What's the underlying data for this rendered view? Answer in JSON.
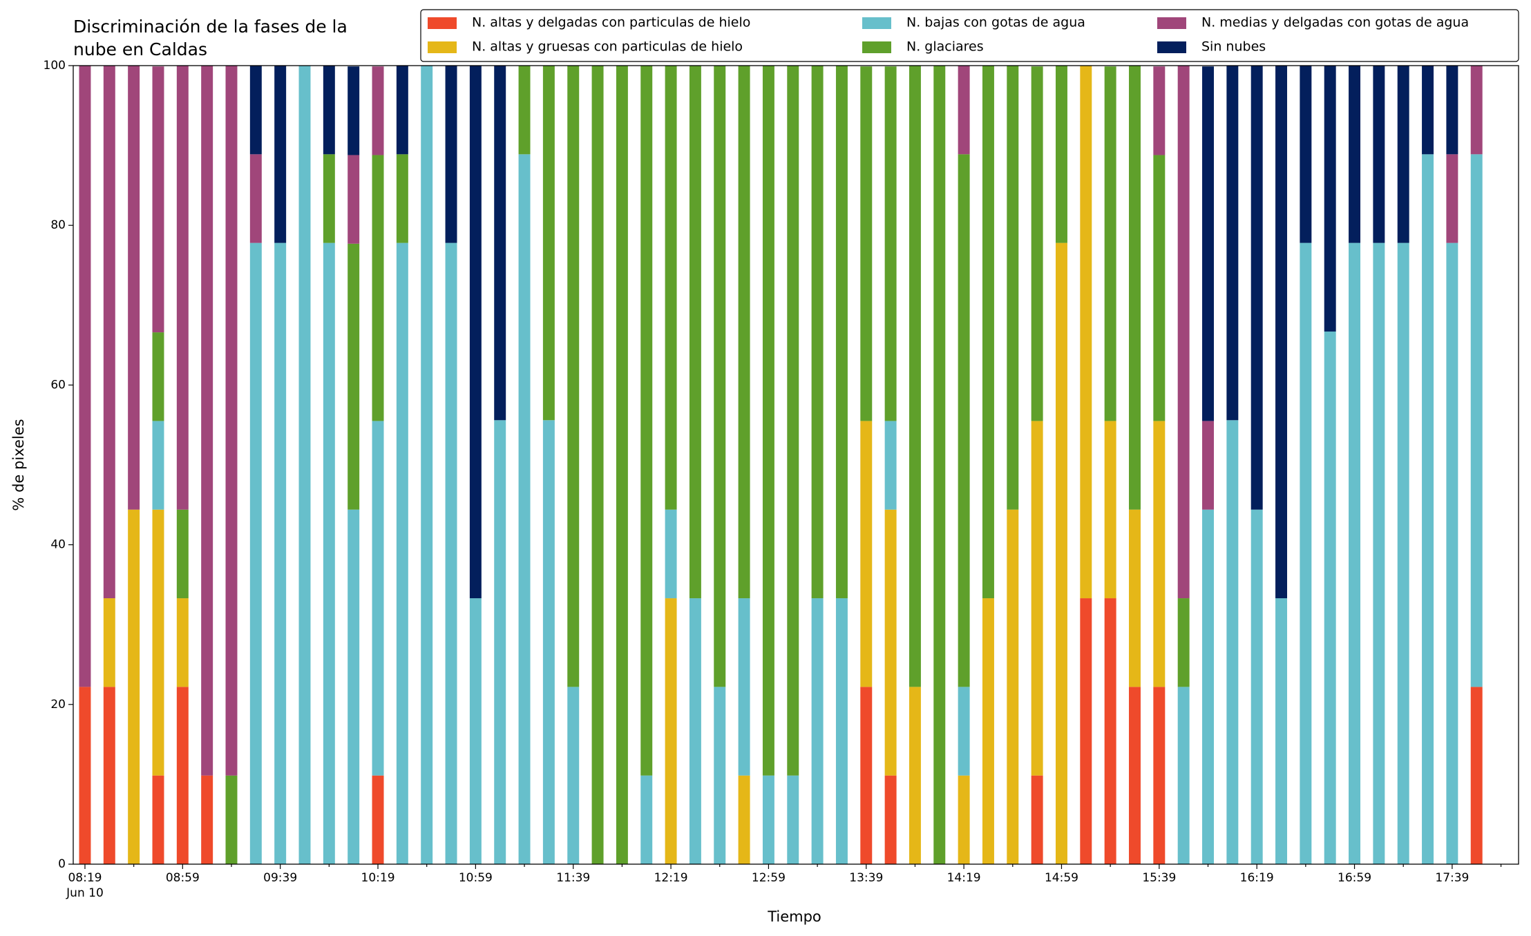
{
  "chart_data": {
    "type": "stacked_bar",
    "title": "Discriminación de la fases de la\nnube en Caldas",
    "x_label": "Tiempo",
    "y_label": "% de pixeles",
    "categories": [
      "08:19\nJun 10",
      null,
      null,
      null,
      "08:59",
      null,
      null,
      null,
      "09:39",
      null,
      null,
      null,
      "10:19",
      null,
      null,
      null,
      "10:59",
      null,
      null,
      null,
      "11:39",
      null,
      null,
      null,
      "12:19",
      null,
      null,
      null,
      "12:59",
      null,
      null,
      null,
      "13:39",
      null,
      null,
      null,
      "14:19",
      null,
      null,
      null,
      "14:59",
      null,
      null,
      null,
      "15:39",
      null,
      null,
      null,
      "16:19",
      null,
      null,
      null,
      "16:59",
      null,
      null,
      null,
      "17:39",
      null
    ],
    "series": [
      {
        "name": "N. altas y delgadas con particulas de hielo",
        "color": "#ef4a2b",
        "values": [
          22.2,
          22.2,
          0,
          11.1,
          22.2,
          11.1,
          0,
          0,
          0,
          0,
          0,
          0,
          11.1,
          0,
          0,
          0,
          0,
          0,
          0,
          0,
          0,
          0,
          0,
          0,
          0,
          0,
          0,
          0,
          0,
          0,
          0,
          0,
          22.2,
          11.1,
          0,
          0,
          0,
          0,
          0,
          11.1,
          0,
          33.3,
          33.3,
          22.2,
          22.2,
          0,
          0,
          0,
          0,
          0,
          0,
          0,
          0,
          0,
          0,
          0,
          0,
          22.2
        ]
      },
      {
        "name": "N. altas y gruesas con particulas de hielo",
        "color": "#e5b718",
        "values": [
          0,
          11.1,
          44.4,
          33.3,
          11.1,
          0,
          0,
          0,
          0,
          0,
          0,
          0,
          0,
          0,
          0,
          0,
          0,
          0,
          0,
          0,
          0,
          0,
          0,
          0,
          33.3,
          0,
          0,
          11.1,
          0,
          0,
          0,
          0,
          33.3,
          33.3,
          22.2,
          0,
          11.1,
          33.3,
          44.4,
          44.4,
          77.8,
          66.7,
          22.2,
          22.2,
          33.3,
          0,
          0,
          0,
          0,
          0,
          0,
          0,
          0,
          0,
          0,
          0,
          0,
          0
        ]
      },
      {
        "name": "N. bajas con gotas de agua",
        "color": "#67bfcb",
        "values": [
          0,
          0,
          0,
          11.1,
          0,
          0,
          0,
          77.8,
          77.8,
          100,
          77.8,
          44.4,
          44.4,
          77.8,
          100,
          77.8,
          33.3,
          55.6,
          88.9,
          55.6,
          22.2,
          0,
          0,
          11.1,
          11.1,
          33.3,
          22.2,
          22.2,
          11.1,
          11.1,
          33.3,
          33.3,
          0,
          11.1,
          0,
          0,
          11.1,
          0,
          0,
          0,
          0,
          0,
          0,
          0,
          0,
          22.2,
          44.4,
          55.6,
          44.4,
          33.3,
          77.8,
          66.7,
          77.8,
          77.8,
          77.8,
          88.9,
          77.8,
          66.7
        ]
      },
      {
        "name": "N. glaciares",
        "color": "#5fa02b",
        "values": [
          0,
          0,
          0,
          11.1,
          11.1,
          0,
          11.1,
          0,
          0,
          0,
          11.1,
          33.3,
          33.3,
          11.1,
          0,
          0,
          0,
          0,
          11.1,
          44.4,
          77.8,
          100,
          100,
          88.9,
          55.6,
          66.7,
          77.8,
          66.7,
          88.9,
          88.9,
          66.7,
          66.7,
          44.4,
          44.4,
          77.8,
          100,
          66.7,
          66.7,
          55.6,
          44.4,
          22.2,
          0,
          44.4,
          55.6,
          33.3,
          11.1,
          0,
          0,
          0,
          0,
          0,
          0,
          0,
          0,
          0,
          0,
          0,
          0
        ]
      },
      {
        "name": "N. medias y delgadas con gotas de agua",
        "color": "#a0467a",
        "values": [
          77.8,
          66.7,
          55.6,
          33.3,
          55.6,
          88.9,
          88.9,
          11.1,
          0,
          0,
          0,
          11.1,
          11.1,
          0,
          0,
          0,
          0,
          0,
          0,
          0,
          0,
          0,
          0,
          0,
          0,
          0,
          0,
          0,
          0,
          0,
          0,
          0,
          0,
          0,
          0,
          0,
          11.1,
          0,
          0,
          0,
          0,
          0,
          0,
          0,
          11.1,
          66.7,
          11.1,
          0,
          0,
          0,
          0,
          0,
          0,
          0,
          0,
          0,
          11.1,
          11.1
        ]
      },
      {
        "name": "Sin nubes",
        "color": "#031f5c",
        "values": [
          0,
          0,
          0,
          0,
          0,
          0,
          0,
          11.1,
          22.2,
          0,
          11.1,
          11.1,
          0,
          11.1,
          0,
          22.2,
          66.7,
          44.4,
          0,
          0,
          0,
          0,
          0,
          0,
          0,
          0,
          0,
          0,
          0,
          0,
          0,
          0,
          0,
          0,
          0,
          0,
          0,
          0,
          0,
          0,
          0,
          0,
          0,
          0,
          0,
          0,
          44.4,
          44.4,
          55.6,
          66.7,
          22.2,
          33.3,
          22.2,
          22.2,
          22.2,
          11.1,
          11.1,
          0
        ]
      }
    ],
    "ylim": [
      0,
      100
    ],
    "yticks": [
      0,
      20,
      40,
      60,
      80,
      100
    ],
    "grid": false,
    "legend": "upper right"
  }
}
